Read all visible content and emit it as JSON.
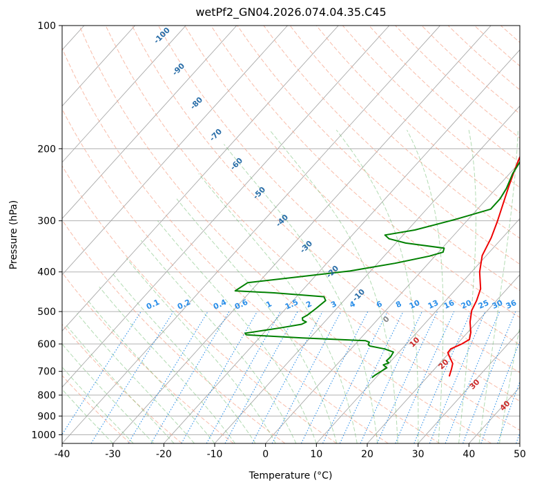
{
  "chart_data": {
    "type": "line",
    "title": "wetPf2_GN04.2026.074.04.35.C45",
    "xlabel": "Temperature (°C)",
    "ylabel": "Pressure (hPa)",
    "xlim": [
      -40,
      50
    ],
    "ylim": [
      1050,
      100
    ],
    "x_ticks": [
      -40,
      -30,
      -20,
      -10,
      0,
      10,
      20,
      30,
      40,
      50
    ],
    "y_ticks": [
      1000,
      900,
      800,
      700,
      600,
      500,
      400,
      300,
      200,
      100
    ],
    "grid": true,
    "series": [
      {
        "name": "Temperature",
        "color": "#ee0000",
        "points": [
          [
            12.6,
            100
          ],
          [
            12.5,
            103
          ],
          [
            12.6,
            108
          ],
          [
            12.8,
            114
          ],
          [
            12.9,
            120
          ],
          [
            12.6,
            124
          ],
          [
            11.6,
            128
          ],
          [
            10.2,
            134
          ],
          [
            8.9,
            140
          ],
          [
            7.4,
            148
          ],
          [
            5.9,
            156
          ],
          [
            3.4,
            164
          ],
          [
            1.4,
            172
          ],
          [
            0.4,
            181
          ],
          [
            -0.6,
            190
          ],
          [
            -1.6,
            199
          ],
          [
            -0.9,
            210
          ],
          [
            0.4,
            226
          ],
          [
            2.1,
            247
          ],
          [
            3.9,
            270
          ],
          [
            6.1,
            301
          ],
          [
            7.8,
            330
          ],
          [
            9.2,
            365
          ],
          [
            11.6,
            400
          ],
          [
            14.8,
            440
          ],
          [
            16.1,
            470
          ],
          [
            16.9,
            497
          ],
          [
            18.6,
            530
          ],
          [
            20.6,
            562
          ],
          [
            21.6,
            585
          ],
          [
            20.9,
            600
          ],
          [
            19.6,
            617
          ],
          [
            19.7,
            630
          ],
          [
            21.0,
            648
          ],
          [
            22.6,
            670
          ],
          [
            23.3,
            690
          ],
          [
            24.2,
            720
          ]
        ]
      },
      {
        "name": "Dewpoint",
        "color": "#008000",
        "points": [
          [
            -3.1,
            100
          ],
          [
            -6.6,
            108
          ],
          [
            -12.0,
            113
          ],
          [
            -13.0,
            117
          ],
          [
            -12.2,
            121
          ],
          [
            -7.2,
            125
          ],
          [
            -5.1,
            130
          ],
          [
            -4.9,
            140
          ],
          [
            -3.8,
            150
          ],
          [
            -1.4,
            160
          ],
          [
            -0.2,
            170
          ],
          [
            -1.4,
            180
          ],
          [
            -1.8,
            190
          ],
          [
            -1.2,
            200
          ],
          [
            -0.3,
            210
          ],
          [
            0.6,
            230
          ],
          [
            2.0,
            250
          ],
          [
            2.6,
            265
          ],
          [
            2.6,
            281
          ],
          [
            -2.6,
            298
          ],
          [
            -8.6,
            316
          ],
          [
            -13.6,
            325
          ],
          [
            -12.1,
            332
          ],
          [
            -8.1,
            340
          ],
          [
            0.4,
            350
          ],
          [
            0.9,
            358
          ],
          [
            -1.1,
            366
          ],
          [
            -6.6,
            381
          ],
          [
            -14.1,
            398
          ],
          [
            -32.1,
            425
          ],
          [
            -33.1,
            445
          ],
          [
            -25.1,
            450
          ],
          [
            -14.6,
            460
          ],
          [
            -13.6,
            470
          ],
          [
            -14.1,
            492
          ],
          [
            -14.6,
            510
          ],
          [
            -15.1,
            518
          ],
          [
            -14.6,
            525
          ],
          [
            -13.6,
            530
          ],
          [
            -14.1,
            537
          ],
          [
            -17.6,
            548
          ],
          [
            -23.6,
            565
          ],
          [
            -23.1,
            570
          ],
          [
            -11.6,
            580
          ],
          [
            1.4,
            589
          ],
          [
            2.4,
            594
          ],
          [
            2.6,
            602
          ],
          [
            3.2,
            607
          ],
          [
            6.6,
            617
          ],
          [
            8.9,
            628
          ],
          [
            9.2,
            645
          ],
          [
            9.1,
            660
          ],
          [
            9.9,
            667
          ],
          [
            9.2,
            675
          ],
          [
            10.4,
            686
          ],
          [
            9.9,
            700
          ],
          [
            9.4,
            715
          ],
          [
            9.2,
            725
          ]
        ]
      }
    ],
    "mixing_ratio_labels": [
      "0.1",
      "0.2",
      "0.4",
      "0.6",
      "1",
      "1.5",
      "2",
      "3",
      "4",
      "6",
      "8",
      "10",
      "13",
      "16",
      "20",
      "25",
      "30",
      "36"
    ],
    "dry_adiabat_labels": [
      "-100",
      "-90",
      "-80",
      "-70",
      "-60",
      "-50",
      "-40",
      "-30",
      "-20",
      "-10"
    ],
    "moist_adiabat_labels": [
      "0",
      "10",
      "20",
      "30",
      "40"
    ]
  },
  "colors": {
    "temperature": "#ee0000",
    "dewpoint": "#008000",
    "dry_adiabat": "#f6a58c",
    "moist_adiabat": "#66b866",
    "mixing_ratio": "#2a8ee8",
    "isotherm": "#666666"
  }
}
